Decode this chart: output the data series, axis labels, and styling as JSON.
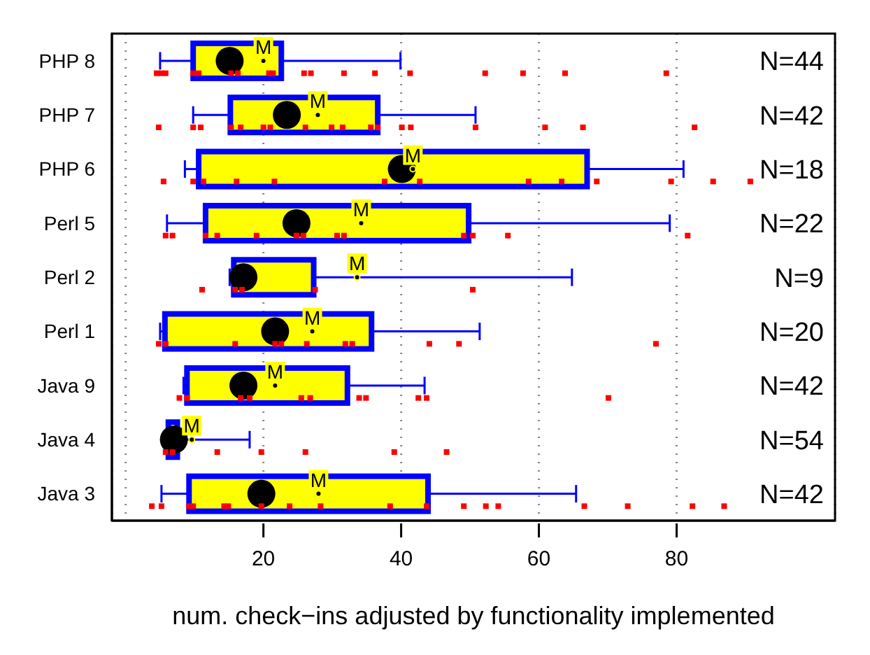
{
  "chart_data": {
    "type": "box",
    "orientation": "horizontal",
    "xlabel": "num. check−ins adjusted by functionality implemented",
    "categories": [
      "PHP 8",
      "PHP 7",
      "PHP 6",
      "Perl 5",
      "Perl 2",
      "Perl 1",
      "Java 9",
      "Java 4",
      "Java 3"
    ],
    "xlim": [
      -2,
      103
    ],
    "xticks": [
      {
        "value": 0,
        "label": null
      },
      20,
      40,
      60,
      80
    ],
    "grid": "x",
    "series": [
      {
        "type": "box",
        "color": "#ffff00",
        "boxes": [
          {
            "low": 5.0,
            "q1": 9.8,
            "median": 15.1,
            "q3": 22.6,
            "high": 39.9,
            "mean": 20.0
          },
          {
            "low": 9.8,
            "q1": 15.2,
            "median": 23.4,
            "q3": 36.6,
            "high": 50.8,
            "mean": 27.9
          },
          {
            "low": 8.6,
            "q1": 10.6,
            "median": 40.1,
            "q3": 67.0,
            "high": 81.0,
            "mean": 41.7
          },
          {
            "low": 6.0,
            "q1": 11.6,
            "median": 24.8,
            "q3": 49.8,
            "high": 79.0,
            "mean": 34.2
          },
          {
            "low": 15.1,
            "q1": 15.7,
            "median": 17.1,
            "q3": 27.3,
            "high": 64.8,
            "mean": 33.6
          },
          {
            "low": 5.0,
            "q1": 5.7,
            "median": 21.7,
            "q3": 35.7,
            "high": 51.4,
            "mean": 27.1
          },
          {
            "low": 8.4,
            "q1": 8.9,
            "median": 17.1,
            "q3": 32.2,
            "high": 43.4,
            "mean": 21.7
          },
          {
            "low": 6.2,
            "q1": 6.2,
            "median": 7.0,
            "q3": 7.5,
            "high": 18.0,
            "mean": 9.6
          },
          {
            "low": 5.2,
            "q1": 9.2,
            "median": 19.7,
            "q3": 43.9,
            "high": 65.4,
            "mean": 28.0
          }
        ]
      },
      {
        "type": "scatter",
        "color": "#ff0000",
        "x": [
          "PHP 8",
          "PHP 8",
          "PHP 8",
          "PHP 8",
          "PHP 8",
          "PHP 8",
          "PHP 8",
          "PHP 8",
          "PHP 8",
          "PHP 8",
          "PHP 8",
          "PHP 8",
          "PHP 8",
          "PHP 8",
          "PHP 8",
          "PHP 8",
          "PHP 8",
          "PHP 8",
          "PHP 7",
          "PHP 7",
          "PHP 7",
          "PHP 7",
          "PHP 7",
          "PHP 7",
          "PHP 7",
          "PHP 7",
          "PHP 7",
          "PHP 7",
          "PHP 7",
          "PHP 7",
          "PHP 7",
          "PHP 7",
          "PHP 7",
          "PHP 7",
          "PHP 7",
          "PHP 7",
          "PHP 6",
          "PHP 6",
          "PHP 6",
          "PHP 6",
          "PHP 6",
          "PHP 6",
          "PHP 6",
          "PHP 6",
          "PHP 6",
          "PHP 6",
          "PHP 6",
          "PHP 6",
          "PHP 6",
          "Perl 5",
          "Perl 5",
          "Perl 5",
          "Perl 5",
          "Perl 5",
          "Perl 5",
          "Perl 5",
          "Perl 5",
          "Perl 5",
          "Perl 5",
          "Perl 5",
          "Perl 5",
          "Perl 5",
          "Perl 2",
          "Perl 2",
          "Perl 2",
          "Perl 2",
          "Perl 2",
          "Perl 1",
          "Perl 1",
          "Perl 1",
          "Perl 1",
          "Perl 1",
          "Perl 1",
          "Perl 1",
          "Perl 1",
          "Perl 1",
          "Perl 1",
          "Perl 1",
          "Java 9",
          "Java 9",
          "Java 9",
          "Java 9",
          "Java 9",
          "Java 9",
          "Java 9",
          "Java 9",
          "Java 9",
          "Java 9",
          "Java 9",
          "Java 4",
          "Java 4",
          "Java 4",
          "Java 4",
          "Java 4",
          "Java 4",
          "Java 4",
          "Java 3",
          "Java 3",
          "Java 3",
          "Java 3",
          "Java 3",
          "Java 3",
          "Java 3",
          "Java 3",
          "Java 3",
          "Java 3",
          "Java 3",
          "Java 3",
          "Java 3",
          "Java 3",
          "Java 3",
          "Java 3",
          "Java 3",
          "Java 3"
        ],
        "values": [
          4.5,
          5.2,
          5.8,
          9.8,
          10.6,
          15.3,
          16.3,
          20.8,
          21.4,
          25.9,
          26.9,
          31.7,
          36.2,
          41.3,
          52.2,
          57.7,
          63.8,
          78.5,
          4.8,
          9.8,
          10.9,
          15.3,
          16.7,
          20.0,
          21.0,
          26.1,
          29.9,
          31.5,
          35.6,
          36.6,
          40.1,
          41.4,
          50.8,
          60.9,
          66.4,
          82.6,
          5.5,
          9.8,
          11.3,
          16.1,
          21.6,
          37.6,
          42.7,
          58.5,
          63.3,
          68.4,
          79.2,
          85.3,
          90.7,
          5.8,
          6.8,
          11.6,
          13.3,
          19.0,
          24.8,
          25.8,
          30.7,
          31.7,
          49.1,
          50.4,
          55.5,
          81.6,
          11.1,
          15.9,
          16.9,
          27.5,
          50.4,
          4.8,
          5.8,
          15.9,
          21.7,
          22.6,
          26.3,
          31.9,
          32.9,
          44.1,
          48.4,
          77.0,
          7.8,
          8.9,
          16.7,
          18.0,
          25.5,
          26.8,
          33.9,
          34.9,
          42.5,
          43.7,
          70.1,
          5.8,
          6.8,
          13.3,
          19.7,
          26.1,
          39.0,
          46.6,
          3.8,
          5.2,
          9.2,
          9.8,
          14.3,
          14.9,
          19.7,
          23.8,
          28.3,
          38.4,
          43.7,
          49.1,
          52.3,
          54.1,
          66.6,
          72.9,
          82.3,
          86.9
        ]
      }
    ],
    "annotations": [
      "M",
      "M",
      "M",
      "M",
      "M",
      "M",
      "M",
      "M",
      "M",
      "N=44",
      "N=42",
      "N=18",
      "N=22",
      "N=9",
      "N=20",
      "N=42",
      "N=54",
      "N=42"
    ]
  }
}
